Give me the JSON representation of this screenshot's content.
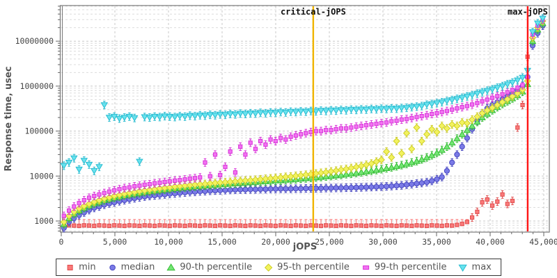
{
  "chart": {
    "x_axis_label": "jOPS",
    "y_axis_label": "Response time, usec",
    "x_ticks": [
      {
        "value": 0,
        "label": "0"
      },
      {
        "value": 5000,
        "label": "5,000"
      },
      {
        "value": 10000,
        "label": "10,000"
      },
      {
        "value": 15000,
        "label": "15,000"
      },
      {
        "value": 20000,
        "label": "20,000"
      },
      {
        "value": 25000,
        "label": "25,000"
      },
      {
        "value": 30000,
        "label": "30,000"
      },
      {
        "value": 35000,
        "label": "35,000"
      },
      {
        "value": 40000,
        "label": "40,000"
      },
      {
        "value": 45000,
        "label": "45,000"
      }
    ],
    "y_ticks": [
      {
        "value": 1000,
        "label": "1000"
      },
      {
        "value": 10000,
        "label": "10000"
      },
      {
        "value": 100000,
        "label": "100000"
      },
      {
        "value": 1000000,
        "label": "1000000"
      },
      {
        "value": 10000000,
        "label": "10000000"
      }
    ],
    "annotations": [
      {
        "name": "critical-jops-line",
        "label": "critical-jOPS",
        "x": 23500,
        "color": "#f0b400"
      },
      {
        "name": "max-jops-line",
        "label": "max-jOPS",
        "x": 43500,
        "color": "#ff1414"
      }
    ],
    "grid_color_minor": "#dcdcdc",
    "grid_color_major": "#c8c8c8",
    "border_color": "#777777"
  },
  "chart_data": {
    "type": "scatter",
    "title": "",
    "xlabel": "jOPS",
    "ylabel": "Response time, usec",
    "x_range": [
      0,
      45500
    ],
    "y_log_range": [
      600,
      60000000
    ],
    "grid": "dashed",
    "legend_position": "bottom",
    "x": [
      250,
      720,
      1190,
      1660,
      2130,
      2600,
      3070,
      3540,
      4010,
      4480,
      4950,
      5420,
      5890,
      6360,
      6830,
      7300,
      7770,
      8240,
      8710,
      9180,
      9650,
      10120,
      10590,
      11060,
      11530,
      12000,
      12470,
      12940,
      13410,
      13880,
      14350,
      14820,
      15290,
      15760,
      16230,
      16700,
      17170,
      17640,
      18110,
      18580,
      19050,
      19520,
      19990,
      20460,
      20930,
      21400,
      21870,
      22340,
      22810,
      23280,
      23750,
      24220,
      24690,
      25160,
      25630,
      26100,
      26570,
      27040,
      27510,
      27980,
      28450,
      28920,
      29390,
      29860,
      30330,
      30800,
      31270,
      31740,
      32210,
      32680,
      33150,
      33620,
      34090,
      34560,
      35030,
      35500,
      35970,
      36440,
      36910,
      37380,
      37850,
      38320,
      38790,
      39260,
      39730,
      40200,
      40670,
      41140,
      41610,
      42080,
      42550,
      43020,
      43490,
      43960,
      44430,
      44900
    ],
    "series": [
      {
        "name": "min",
        "marker": "square",
        "color": "#fa7a7a",
        "edge": "#e04a4a",
        "values": [
          780,
          800,
          790,
          780,
          800,
          790,
          780,
          800,
          790,
          780,
          800,
          790,
          780,
          800,
          790,
          780,
          800,
          790,
          780,
          800,
          790,
          780,
          800,
          790,
          780,
          800,
          790,
          780,
          800,
          790,
          780,
          800,
          790,
          780,
          800,
          790,
          780,
          800,
          790,
          780,
          800,
          790,
          780,
          800,
          790,
          780,
          800,
          790,
          780,
          800,
          790,
          780,
          800,
          790,
          780,
          800,
          790,
          780,
          800,
          790,
          780,
          800,
          790,
          780,
          800,
          790,
          780,
          800,
          790,
          780,
          800,
          790,
          780,
          800,
          790,
          780,
          800,
          790,
          820,
          860,
          950,
          1200,
          1600,
          2600,
          3000,
          2200,
          2700,
          3900,
          2400,
          2800,
          120000,
          380000,
          4500000,
          12000000,
          18000000,
          22000000
        ]
      },
      {
        "name": "median",
        "marker": "circle",
        "color": "#7a7ae6",
        "edge": "#4646c0",
        "values": [
          700,
          950,
          1150,
          1350,
          1550,
          1750,
          1950,
          2100,
          2300,
          2450,
          2600,
          2750,
          2900,
          3050,
          3200,
          3350,
          3500,
          3600,
          3700,
          3800,
          3900,
          4000,
          4100,
          4200,
          4300,
          4400,
          4450,
          4550,
          4600,
          4700,
          4750,
          4800,
          4850,
          4900,
          4950,
          5000,
          5000,
          5050,
          5050,
          5100,
          5100,
          5150,
          5150,
          5200,
          5200,
          5200,
          5250,
          5250,
          5300,
          5300,
          5350,
          5350,
          5400,
          5400,
          5450,
          5450,
          5500,
          5500,
          5550,
          5600,
          5650,
          5700,
          5750,
          5800,
          5900,
          6000,
          6100,
          6200,
          6400,
          6600,
          6800,
          7000,
          7300,
          7800,
          8500,
          9500,
          13000,
          20000,
          30000,
          45000,
          70000,
          110000,
          170000,
          250000,
          320000,
          380000,
          440000,
          510000,
          590000,
          690000,
          820000,
          1000000,
          1600000,
          8000000,
          15000000,
          22000000
        ]
      },
      {
        "name": "90-th percentile",
        "marker": "triangle-up",
        "color": "#74e674",
        "edge": "#34bc34",
        "values": [
          850,
          1150,
          1450,
          1700,
          1950,
          2200,
          2450,
          2650,
          2900,
          3100,
          3300,
          3500,
          3700,
          3900,
          4050,
          4200,
          4400,
          4550,
          4700,
          4850,
          5000,
          5150,
          5300,
          5450,
          5600,
          5700,
          5850,
          6000,
          6100,
          6250,
          6350,
          6500,
          6600,
          6750,
          6850,
          7000,
          7100,
          7250,
          7350,
          7500,
          7600,
          7750,
          7900,
          8000,
          8200,
          8300,
          8500,
          8700,
          8900,
          9100,
          9300,
          9500,
          9800,
          10000,
          10300,
          10600,
          11000,
          11300,
          11700,
          12100,
          12600,
          13100,
          13600,
          14200,
          14900,
          15600,
          16500,
          17500,
          18600,
          20000,
          21500,
          23500,
          26000,
          29000,
          33000,
          38000,
          45000,
          55000,
          68000,
          85000,
          105000,
          130000,
          160000,
          200000,
          240000,
          290000,
          340000,
          400000,
          460000,
          530000,
          620000,
          750000,
          1100000,
          10000000,
          18000000,
          25000000
        ]
      },
      {
        "name": "95-th percentile",
        "marker": "diamond",
        "color": "#f2f25e",
        "edge": "#cece28",
        "values": [
          950,
          1300,
          1600,
          1900,
          2150,
          2400,
          2650,
          2900,
          3150,
          3350,
          3600,
          3800,
          4000,
          4200,
          4400,
          4600,
          4750,
          4950,
          5100,
          5300,
          5450,
          5600,
          5800,
          5950,
          6100,
          6250,
          6400,
          6550,
          6700,
          6850,
          7000,
          7150,
          7300,
          7450,
          7600,
          7800,
          7950,
          8100,
          8300,
          8500,
          8700,
          8900,
          9100,
          9300,
          9600,
          9800,
          10100,
          10400,
          10700,
          11000,
          11400,
          11800,
          12200,
          12700,
          13200,
          13800,
          14400,
          15100,
          15900,
          16800,
          17800,
          19000,
          21000,
          23000,
          35000,
          26000,
          60000,
          32000,
          90000,
          40000,
          120000,
          60000,
          85000,
          110000,
          95000,
          130000,
          115000,
          140000,
          130000,
          155000,
          150000,
          180000,
          210000,
          250000,
          290000,
          330000,
          380000,
          440000,
          510000,
          590000,
          690000,
          830000,
          1300000,
          12000000,
          20000000,
          28000000
        ]
      },
      {
        "name": "99-th percentile",
        "marker": "bar",
        "color": "#f272f2",
        "edge": "#d832d8",
        "values": [
          1300,
          1700,
          2100,
          2500,
          2900,
          3300,
          3600,
          3900,
          4200,
          4500,
          4800,
          5100,
          5400,
          5600,
          5900,
          6100,
          6400,
          6600,
          6900,
          7100,
          7400,
          7600,
          7900,
          8100,
          8400,
          8700,
          9000,
          9300,
          20000,
          9900,
          30000,
          10500,
          16000,
          35000,
          12000,
          45000,
          30000,
          55000,
          40000,
          60000,
          50000,
          65000,
          60000,
          70000,
          65000,
          75000,
          80000,
          85000,
          90000,
          95000,
          100000,
          100000,
          105000,
          105000,
          110000,
          115000,
          115000,
          120000,
          125000,
          130000,
          135000,
          140000,
          145000,
          150000,
          155000,
          165000,
          170000,
          180000,
          185000,
          195000,
          205000,
          215000,
          225000,
          240000,
          250000,
          265000,
          280000,
          300000,
          320000,
          340000,
          360000,
          390000,
          420000,
          460000,
          500000,
          550000,
          600000,
          660000,
          730000,
          820000,
          920000,
          1050000,
          1600000,
          14000000,
          22000000,
          30000000
        ]
      },
      {
        "name": "max",
        "marker": "triangle-down",
        "color": "#68e2ee",
        "edge": "#28bcd0",
        "values": [
          17000,
          20000,
          25000,
          14000,
          22000,
          18000,
          13000,
          16000,
          380000,
          200000,
          210000,
          190000,
          200000,
          210000,
          195000,
          21000,
          205000,
          200000,
          210000,
          205000,
          215000,
          210000,
          205000,
          215000,
          210000,
          220000,
          215000,
          225000,
          220000,
          230000,
          225000,
          235000,
          230000,
          240000,
          235000,
          245000,
          240000,
          250000,
          245000,
          255000,
          250000,
          260000,
          255000,
          265000,
          260000,
          270000,
          265000,
          275000,
          270000,
          280000,
          275000,
          285000,
          280000,
          290000,
          285000,
          295000,
          290000,
          300000,
          295000,
          305000,
          300000,
          310000,
          305000,
          315000,
          310000,
          320000,
          315000,
          325000,
          330000,
          340000,
          350000,
          360000,
          385000,
          400000,
          420000,
          440000,
          465000,
          490000,
          520000,
          550000,
          590000,
          630000,
          680000,
          730000,
          790000,
          850000,
          920000,
          1000000,
          1100000,
          1200000,
          1350000,
          1550000,
          2200000,
          16000000,
          25000000,
          32000000
        ]
      }
    ]
  },
  "legend": {
    "items": [
      {
        "label": "min"
      },
      {
        "label": "median"
      },
      {
        "label": "90-th percentile"
      },
      {
        "label": "95-th percentile"
      },
      {
        "label": "99-th percentile"
      },
      {
        "label": "max"
      }
    ]
  }
}
